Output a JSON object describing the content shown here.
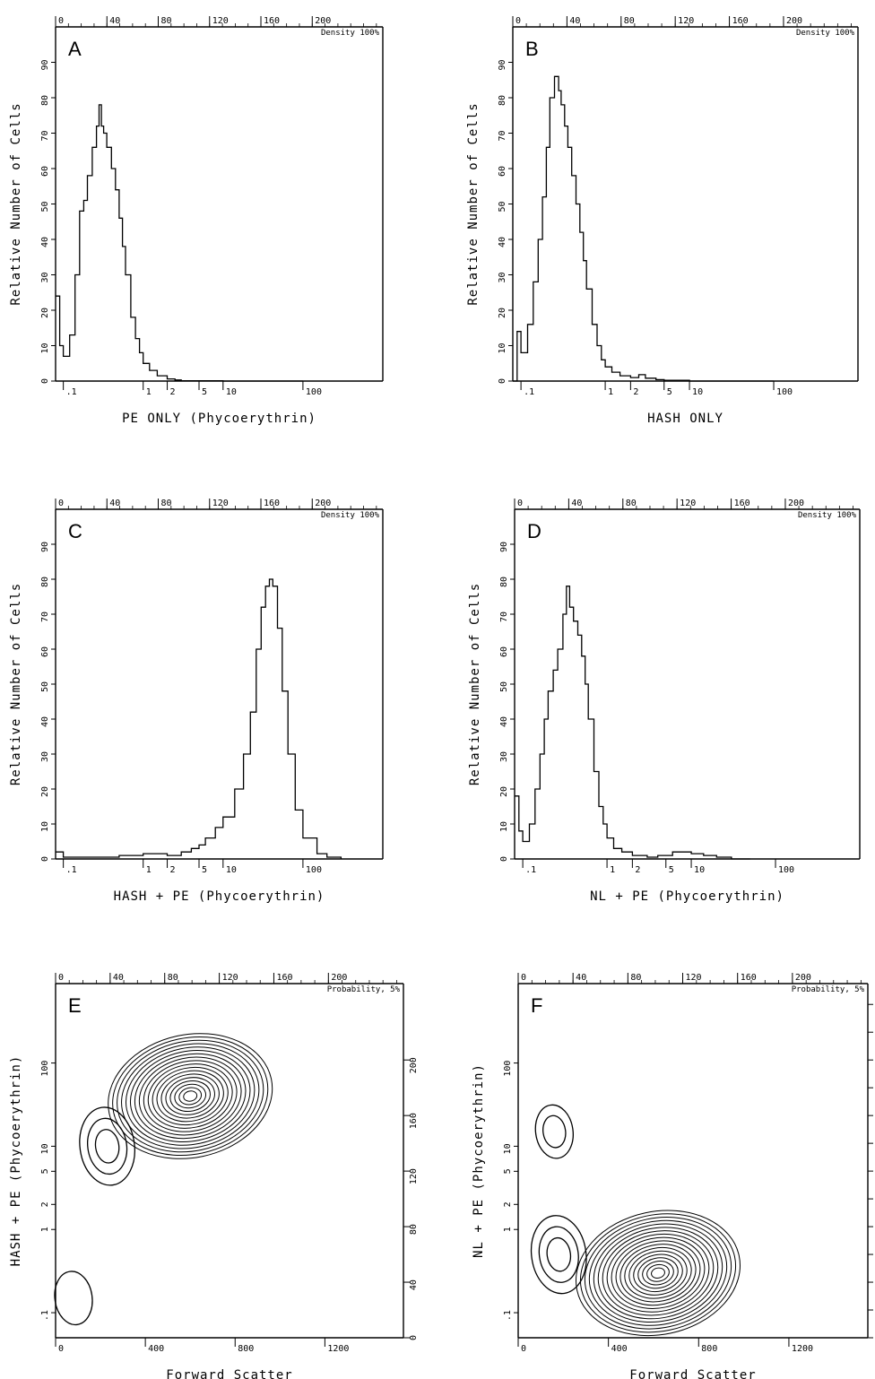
{
  "chart_data": [
    {
      "panel": "A",
      "type": "histogram",
      "xlabel": "PE ONLY (Phycoerythrin)",
      "ylabel": "Relative Number of Cells",
      "corner_label": "Density 100%",
      "top_ticks": [
        "0",
        "40",
        "80",
        "120",
        "160",
        "200"
      ],
      "bottom_ticks": [
        ".1",
        "1",
        "2",
        "5",
        "10",
        "100"
      ],
      "left_ticks": [
        "0",
        "10",
        "20",
        "30",
        "40",
        "50",
        "60",
        "70",
        "80",
        "90"
      ],
      "xlog": true,
      "xlim": [
        0.08,
        1000
      ],
      "ylim": [
        0,
        100
      ],
      "x": [
        0.08,
        0.09,
        0.1,
        0.12,
        0.14,
        0.16,
        0.18,
        0.2,
        0.23,
        0.26,
        0.28,
        0.3,
        0.32,
        0.35,
        0.4,
        0.45,
        0.5,
        0.55,
        0.6,
        0.7,
        0.8,
        0.9,
        1,
        1.2,
        1.5,
        2,
        2.5,
        3,
        5,
        10,
        20,
        50,
        100
      ],
      "y": [
        24,
        10,
        7,
        13,
        30,
        48,
        51,
        58,
        66,
        72,
        78,
        72,
        70,
        66,
        60,
        54,
        46,
        38,
        30,
        18,
        12,
        8,
        5,
        3,
        1.5,
        0.6,
        0.3,
        0.1,
        0.1,
        0,
        0,
        0,
        0
      ]
    },
    {
      "panel": "B",
      "type": "histogram",
      "xlabel": "HASH ONLY",
      "ylabel": "Relative Number of Cells",
      "corner_label": "Density 100%",
      "top_ticks": [
        "0",
        "40",
        "80",
        "120",
        "160",
        "200"
      ],
      "bottom_ticks": [
        ".1",
        "1",
        "2",
        "5",
        "10",
        "100"
      ],
      "left_ticks": [
        "0",
        "10",
        "20",
        "30",
        "40",
        "50",
        "60",
        "70",
        "80",
        "90"
      ],
      "xlog": true,
      "xlim": [
        0.08,
        1000
      ],
      "ylim": [
        0,
        100
      ],
      "x": [
        0.08,
        0.09,
        0.1,
        0.12,
        0.14,
        0.16,
        0.18,
        0.2,
        0.22,
        0.25,
        0.28,
        0.3,
        0.33,
        0.36,
        0.4,
        0.45,
        0.5,
        0.55,
        0.6,
        0.7,
        0.8,
        0.9,
        1,
        1.2,
        1.5,
        2,
        2.5,
        3,
        4,
        5,
        10,
        100
      ],
      "y": [
        0,
        14,
        8,
        16,
        28,
        40,
        52,
        66,
        80,
        86,
        82,
        78,
        72,
        66,
        58,
        50,
        42,
        34,
        26,
        16,
        10,
        6,
        4,
        2.5,
        1.5,
        1,
        1.8,
        0.8,
        0.4,
        0.2,
        0,
        0
      ]
    },
    {
      "panel": "C",
      "type": "histogram",
      "xlabel": "HASH + PE (Phycoerythrin)",
      "ylabel": "Relative Number of Cells",
      "corner_label": "Density 100%",
      "top_ticks": [
        "0",
        "40",
        "80",
        "120",
        "160",
        "200"
      ],
      "bottom_ticks": [
        ".1",
        "1",
        "2",
        "5",
        "10",
        "100"
      ],
      "left_ticks": [
        "0",
        "10",
        "20",
        "30",
        "40",
        "50",
        "60",
        "70",
        "80",
        "90"
      ],
      "xlog": true,
      "xlim": [
        0.08,
        1000
      ],
      "ylim": [
        0,
        100
      ],
      "x": [
        0.08,
        0.1,
        0.2,
        0.5,
        1,
        2,
        3,
        4,
        5,
        6,
        8,
        10,
        14,
        18,
        22,
        26,
        30,
        34,
        38,
        42,
        48,
        55,
        65,
        80,
        100,
        150,
        200,
        300
      ],
      "y": [
        2,
        0.5,
        0.5,
        1,
        1.5,
        1,
        2,
        3,
        4,
        6,
        9,
        12,
        20,
        30,
        42,
        60,
        72,
        78,
        80,
        78,
        66,
        48,
        30,
        14,
        6,
        1.5,
        0.5,
        0
      ]
    },
    {
      "panel": "D",
      "type": "histogram",
      "xlabel": "NL + PE (Phycoerythrin)",
      "ylabel": "Relative Number of Cells",
      "corner_label": "Density 100%",
      "top_ticks": [
        "0",
        "40",
        "80",
        "120",
        "160",
        "200"
      ],
      "bottom_ticks": [
        ".1",
        "1",
        "2",
        "5",
        "10",
        "100"
      ],
      "left_ticks": [
        "0",
        "10",
        "20",
        "30",
        "40",
        "50",
        "60",
        "70",
        "80",
        "90"
      ],
      "xlog": true,
      "xlim": [
        0.08,
        1000
      ],
      "ylim": [
        0,
        100
      ],
      "x": [
        0.08,
        0.09,
        0.1,
        0.12,
        0.14,
        0.16,
        0.18,
        0.2,
        0.23,
        0.26,
        0.3,
        0.33,
        0.36,
        0.4,
        0.45,
        0.5,
        0.55,
        0.6,
        0.7,
        0.8,
        0.9,
        1,
        1.2,
        1.5,
        2,
        3,
        4,
        6,
        8,
        10,
        14,
        20,
        30,
        50
      ],
      "y": [
        18,
        8,
        5,
        10,
        20,
        30,
        40,
        48,
        54,
        60,
        70,
        78,
        72,
        68,
        64,
        58,
        50,
        40,
        25,
        15,
        10,
        6,
        3,
        2,
        1,
        0.5,
        1,
        2,
        2,
        1.5,
        1,
        0.5,
        0,
        0
      ]
    },
    {
      "panel": "E",
      "type": "contour",
      "xlabel": "Forward Scatter",
      "ylabel": "HASH + PE (Phycoerythrin)",
      "corner_label": "Probability, 5%",
      "top_ticks": [
        "0",
        "40",
        "80",
        "120",
        "160",
        "200"
      ],
      "bottom_ticks": [
        "0",
        "400",
        "800",
        "1200"
      ],
      "left_ticks": [
        ".1",
        "1",
        "2",
        "5",
        "10",
        "100"
      ],
      "right_ticks": [
        "0",
        "40",
        "80",
        "120",
        "160",
        "200"
      ],
      "xlim": [
        0,
        1550
      ],
      "ylog": true,
      "ylim": [
        0.05,
        900
      ],
      "peaks": [
        {
          "x": 600,
          "y": 40,
          "levels": 18
        },
        {
          "x": 230,
          "y": 10,
          "levels": 3
        },
        {
          "x": 80,
          "y": 0.15,
          "levels": 1
        }
      ]
    },
    {
      "panel": "F",
      "type": "contour",
      "xlabel": "Forward Scatter",
      "ylabel": "NL + PE (Phycoerythrin)",
      "corner_label": "Probability, 5%",
      "top_ticks": [
        "0",
        "40",
        "80",
        "120",
        "160",
        "200"
      ],
      "bottom_ticks": [
        "0",
        "400",
        "800",
        "1200"
      ],
      "left_ticks": [
        ".1",
        "1",
        "2",
        "5",
        "10",
        "100"
      ],
      "right_ticks": [],
      "xlim": [
        0,
        1550
      ],
      "ylog": true,
      "ylim": [
        0.05,
        900
      ],
      "peaks": [
        {
          "x": 620,
          "y": 0.3,
          "levels": 18
        },
        {
          "x": 180,
          "y": 0.5,
          "levels": 3
        },
        {
          "x": 160,
          "y": 15,
          "levels": 2
        }
      ]
    }
  ]
}
